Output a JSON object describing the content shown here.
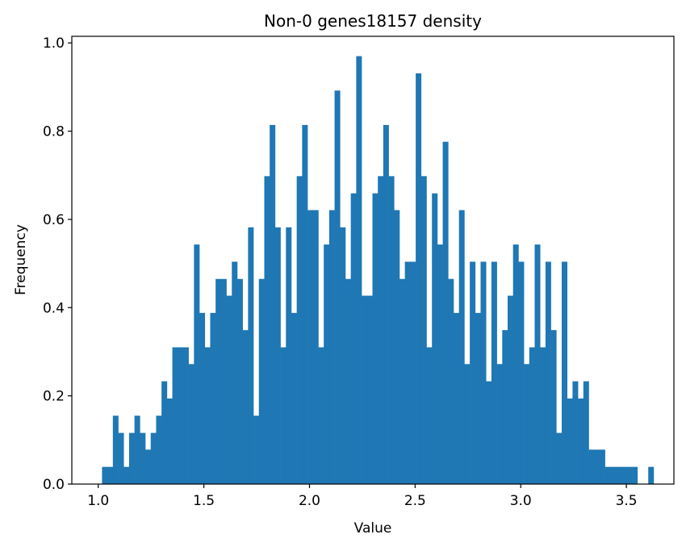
{
  "chart_data": {
    "type": "bar",
    "title": "Non-0 genes18157 density",
    "xlabel": "Value",
    "ylabel": "Frequency",
    "xlim": [
      0.875,
      3.725
    ],
    "ylim": [
      0,
      1.015
    ],
    "grid": false,
    "x_ticks": [
      {
        "value": 1.0,
        "label": "1.0"
      },
      {
        "value": 1.5,
        "label": "1.5"
      },
      {
        "value": 2.0,
        "label": "2.0"
      },
      {
        "value": 2.5,
        "label": "2.5"
      },
      {
        "value": 3.0,
        "label": "3.0"
      },
      {
        "value": 3.5,
        "label": "3.5"
      }
    ],
    "y_ticks": [
      {
        "value": 0.0,
        "label": "0.0"
      },
      {
        "value": 0.2,
        "label": "0.2"
      },
      {
        "value": 0.4,
        "label": "0.4"
      },
      {
        "value": 0.6,
        "label": "0.6"
      },
      {
        "value": 0.8,
        "label": "0.8"
      },
      {
        "value": 1.0,
        "label": "1.0"
      }
    ],
    "color": "#1f77b4",
    "bin_start": 1.018,
    "bin_width": 0.0256,
    "values": [
      0.039,
      0.039,
      0.155,
      0.116,
      0.039,
      0.116,
      0.155,
      0.116,
      0.078,
      0.116,
      0.155,
      0.233,
      0.194,
      0.31,
      0.31,
      0.31,
      0.272,
      0.543,
      0.388,
      0.31,
      0.388,
      0.465,
      0.465,
      0.427,
      0.504,
      0.465,
      0.349,
      0.582,
      0.155,
      0.465,
      0.698,
      0.814,
      0.582,
      0.31,
      0.582,
      0.388,
      0.698,
      0.814,
      0.621,
      0.621,
      0.31,
      0.543,
      0.621,
      0.892,
      0.582,
      0.465,
      0.659,
      0.97,
      0.427,
      0.427,
      0.659,
      0.698,
      0.814,
      0.698,
      0.621,
      0.465,
      0.504,
      0.504,
      0.931,
      0.698,
      0.31,
      0.659,
      0.543,
      0.776,
      0.465,
      0.388,
      0.621,
      0.272,
      0.504,
      0.388,
      0.504,
      0.233,
      0.504,
      0.272,
      0.349,
      0.427,
      0.543,
      0.504,
      0.272,
      0.31,
      0.543,
      0.31,
      0.504,
      0.349,
      0.116,
      0.504,
      0.194,
      0.233,
      0.194,
      0.233,
      0.078,
      0.078,
      0.078,
      0.039,
      0.039,
      0.039,
      0.039,
      0.039,
      0.039,
      0.0,
      0.0,
      0.039
    ]
  }
}
